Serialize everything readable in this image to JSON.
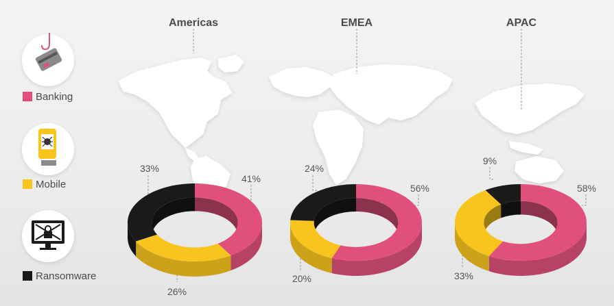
{
  "legend": [
    {
      "label": "Banking",
      "color": "#e0507a",
      "icon": "phishing-card-icon"
    },
    {
      "label": "Mobile",
      "color": "#f7c51e",
      "icon": "infected-phone-icon"
    },
    {
      "label": "Ransomware",
      "color": "#1a1a1a",
      "icon": "locked-monitor-icon"
    }
  ],
  "chart_data": [
    {
      "type": "pie",
      "title": "Americas",
      "slices": [
        {
          "name": "Banking",
          "value": 41,
          "label": "41%",
          "color": "#e0507a"
        },
        {
          "name": "Mobile",
          "value": 26,
          "label": "26%",
          "color": "#f7c51e"
        },
        {
          "name": "Ransomware",
          "value": 33,
          "label": "33%",
          "color": "#1a1a1a"
        }
      ]
    },
    {
      "type": "pie",
      "title": "EMEA",
      "slices": [
        {
          "name": "Banking",
          "value": 56,
          "label": "56%",
          "color": "#e0507a"
        },
        {
          "name": "Mobile",
          "value": 20,
          "label": "20%",
          "color": "#f7c51e"
        },
        {
          "name": "Ransomware",
          "value": 24,
          "label": "24%",
          "color": "#1a1a1a"
        }
      ]
    },
    {
      "type": "pie",
      "title": "APAC",
      "slices": [
        {
          "name": "Banking",
          "value": 58,
          "label": "58%",
          "color": "#e0507a"
        },
        {
          "name": "Mobile",
          "value": 33,
          "label": "33%",
          "color": "#f7c51e"
        },
        {
          "name": "Ransomware",
          "value": 9,
          "label": "9%",
          "color": "#1a1a1a"
        }
      ]
    }
  ]
}
